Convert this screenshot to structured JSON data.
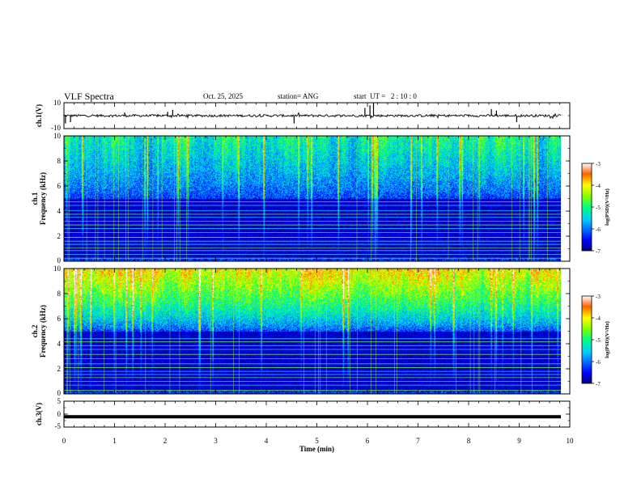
{
  "header": {
    "title": "VLF Spectra",
    "date": "Oct. 25, 2025",
    "station": "station= ANG",
    "start": "start  UT =   2 : 10 : 0"
  },
  "chart_data": [
    {
      "type": "line",
      "name": "ch1-waveform",
      "ylabel": "ch.1(V)",
      "ylim": [
        -10,
        10
      ],
      "y_ticks": [
        "10",
        "-10"
      ],
      "baseline": 0,
      "spikes": [
        {
          "x": 0.03,
          "y": -6
        },
        {
          "x": 0.13,
          "y": -5
        },
        {
          "x": 1.2,
          "y": 2.5
        },
        {
          "x": 2.05,
          "y": 3
        },
        {
          "x": 2.15,
          "y": 4.5
        },
        {
          "x": 4.55,
          "y": -6
        },
        {
          "x": 5.95,
          "y": 6
        },
        {
          "x": 6.05,
          "y": 8
        },
        {
          "x": 6.12,
          "y": 10
        },
        {
          "x": 8.45,
          "y": 5
        },
        {
          "x": 8.55,
          "y": 4
        },
        {
          "x": 8.95,
          "y": -5
        }
      ]
    },
    {
      "type": "heatmap",
      "name": "ch1-spectrogram",
      "ylabel_line1": "ch.1",
      "ylabel_line2": "Frequency (kHz)",
      "ylim": [
        0,
        10
      ],
      "y_ticks": [
        "0",
        "2",
        "4",
        "6",
        "8",
        "10"
      ],
      "colorbar": {
        "label": "log(PSD)(V²/Hz)",
        "ticks": [
          "-3",
          "-4",
          "-5",
          "-6",
          "-7"
        ],
        "range": [
          -7,
          -3
        ]
      },
      "upper_level": -5.2,
      "lines_khz": [
        0.25,
        0.55,
        0.85,
        1.05,
        1.35,
        1.6,
        1.9,
        2.3,
        2.6,
        2.9,
        3.2,
        3.5,
        3.75,
        4.05,
        4.45,
        4.75
      ]
    },
    {
      "type": "heatmap",
      "name": "ch2-spectrogram",
      "ylabel_line1": "ch.2",
      "ylabel_line2": "Frequency (kHz)",
      "ylim": [
        0,
        10
      ],
      "y_ticks": [
        "0",
        "2",
        "4",
        "6",
        "8",
        "10"
      ],
      "colorbar": {
        "label": "log(PSD)(V²/Hz)",
        "ticks": [
          "-3",
          "-4",
          "-5",
          "-6",
          "-7"
        ],
        "range": [
          -7,
          -3
        ]
      },
      "upper_level": -3.9,
      "lines_khz": [
        0.3,
        0.7,
        1.0,
        1.3,
        1.55,
        1.8,
        2.1,
        2.4,
        2.8,
        3.15,
        3.55,
        3.85,
        4.15,
        4.4
      ]
    },
    {
      "type": "line",
      "name": "ch3-waveform",
      "ylabel": "ch.3(V)",
      "ylim": [
        -5,
        5
      ],
      "y_ticks": [
        "5",
        "0",
        "-5"
      ],
      "values_constant": -1
    }
  ],
  "x_axis": {
    "label": "Time (min)",
    "xlim": [
      0,
      10
    ],
    "ticks": [
      "0",
      "1",
      "2",
      "3",
      "4",
      "5",
      "6",
      "7",
      "8",
      "9",
      "10"
    ]
  }
}
